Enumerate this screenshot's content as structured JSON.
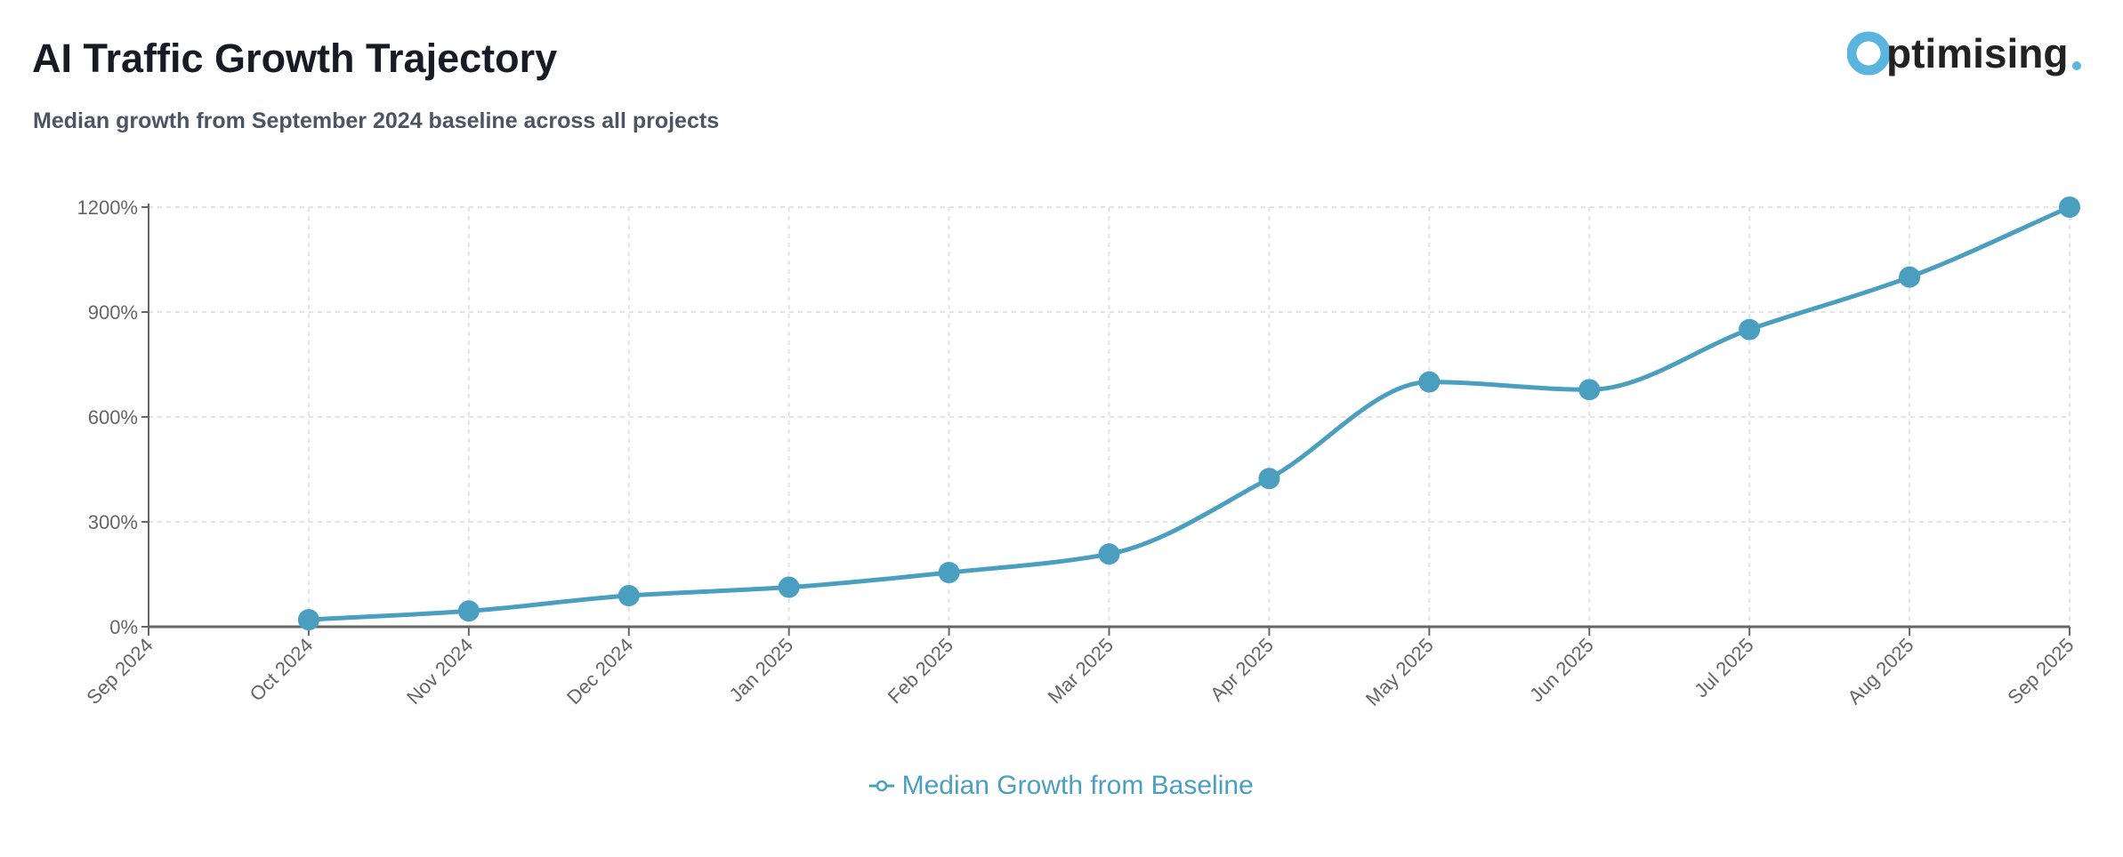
{
  "header": {
    "title": "AI Traffic Growth Trajectory",
    "subtitle": "Median growth from September 2024 baseline across all projects",
    "logo_text": "Optimising."
  },
  "colors": {
    "series": "#4a9fc1",
    "logo_blue": "#5ab4e0",
    "logo_dark": "#222222"
  },
  "chart_data": {
    "type": "line",
    "title": "",
    "xlabel": "",
    "ylabel": "",
    "x": [
      "Sep 2024",
      "Oct 2024",
      "Nov 2024",
      "Dec 2024",
      "Jan 2025",
      "Feb 2025",
      "Mar 2025",
      "Apr 2025",
      "May 2025",
      "Jun 2025",
      "Jul 2025",
      "Aug 2025",
      "Sep 2025"
    ],
    "y_ticks": [
      "0%",
      "300%",
      "600%",
      "900%",
      "1200%"
    ],
    "y_tick_values": [
      0,
      300,
      600,
      900,
      1200
    ],
    "ylim": [
      0,
      1200
    ],
    "grid": true,
    "legend_placement": "bottom",
    "series": [
      {
        "name": "Median Growth from Baseline",
        "x": [
          "Oct 2024",
          "Nov 2024",
          "Dec 2024",
          "Jan 2025",
          "Feb 2025",
          "Mar 2025",
          "Apr 2025",
          "May 2025",
          "Jun 2025",
          "Jul 2025",
          "Aug 2025",
          "Sep 2025"
        ],
        "values": [
          20,
          45,
          89,
          113,
          155,
          208,
          424,
          700,
          678,
          850,
          1000,
          1200
        ]
      }
    ]
  }
}
